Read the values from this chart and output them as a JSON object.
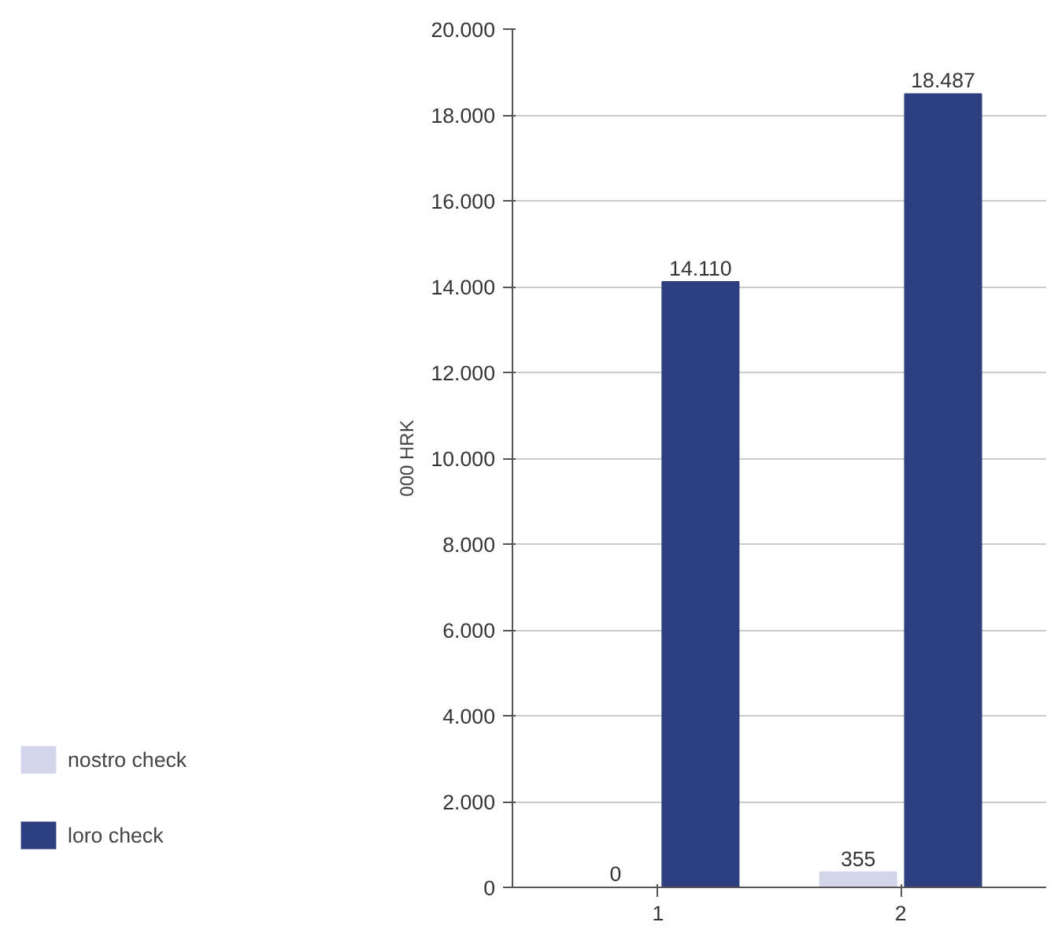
{
  "chart_data": {
    "type": "bar",
    "ylabel": "000 HRK",
    "categories": [
      "1",
      "2"
    ],
    "series": [
      {
        "name": "nostro check",
        "color": "#d3d5ea",
        "values": [
          0,
          355
        ],
        "value_labels": [
          "0",
          "355"
        ]
      },
      {
        "name": "loro check",
        "color": "#2e3f7f",
        "values": [
          14110,
          18487
        ],
        "value_labels": [
          "14.110",
          "18.487"
        ]
      }
    ],
    "ylim": [
      0,
      20000
    ],
    "yticks": [
      {
        "value": 0,
        "label": "0"
      },
      {
        "value": 2000,
        "label": "2.000"
      },
      {
        "value": 4000,
        "label": "4.000"
      },
      {
        "value": 6000,
        "label": "6.000"
      },
      {
        "value": 8000,
        "label": "8.000"
      },
      {
        "value": 10000,
        "label": "10.000"
      },
      {
        "value": 12000,
        "label": "12.000"
      },
      {
        "value": 14000,
        "label": "14.000"
      },
      {
        "value": 16000,
        "label": "16.000"
      },
      {
        "value": 18000,
        "label": "18.000"
      },
      {
        "value": 20000,
        "label": "20.000"
      }
    ],
    "grid": "y",
    "legend": "bottom left"
  }
}
